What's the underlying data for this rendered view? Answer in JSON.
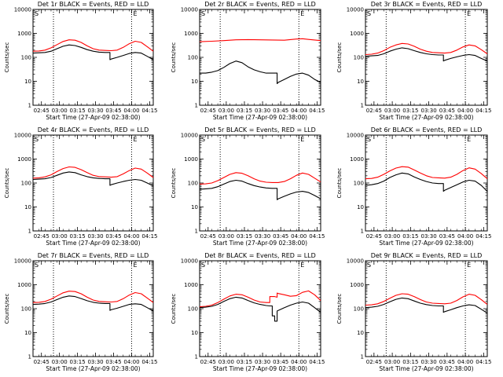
{
  "figure": {
    "xlabel": "Start Time (27-Apr-09 02:38:00)",
    "ylabel": "Counts/sec",
    "x_tick_labels": [
      "02:45",
      "03:00",
      "03:15",
      "03:30",
      "03:45",
      "04:00",
      "04:15"
    ],
    "y_tick_labels": [
      "1",
      "10",
      "100",
      "1000",
      "10000"
    ],
    "markers": {
      "start": "S",
      "end": "E"
    },
    "colors": {
      "events": "#000000",
      "lld": "#ff0000",
      "frame": "#000000"
    }
  },
  "chart_data": [
    {
      "type": "line",
      "title": "Det 1r BLACK = Events, RED = LLD",
      "xlim": [
        0,
        100
      ],
      "ylim": [
        1,
        10000
      ],
      "y_scale": "log",
      "x_tick_values": [
        7,
        22,
        37,
        52,
        67,
        82,
        97
      ],
      "dotted_vlines_minutes": [
        17,
        82
      ],
      "markers": {
        "start_x": 0,
        "end_x": 82
      },
      "series": [
        {
          "name": "BLACK = Events",
          "x": [
            0,
            5,
            10,
            15,
            20,
            25,
            30,
            35,
            40,
            45,
            50,
            55,
            60,
            64,
            64,
            65,
            70,
            75,
            80,
            85,
            90,
            95,
            100
          ],
          "y": [
            150,
            155,
            160,
            180,
            230,
            290,
            330,
            310,
            260,
            210,
            180,
            165,
            160,
            160,
            80,
            85,
            100,
            120,
            145,
            160,
            150,
            110,
            80
          ]
        },
        {
          "name": "RED = LLD",
          "x": [
            0,
            5,
            10,
            15,
            20,
            25,
            30,
            35,
            40,
            45,
            50,
            55,
            60,
            65,
            70,
            75,
            80,
            85,
            90,
            95,
            100
          ],
          "y": [
            180,
            185,
            200,
            250,
            340,
            460,
            540,
            520,
            420,
            300,
            230,
            200,
            195,
            190,
            200,
            260,
            370,
            470,
            420,
            280,
            180
          ]
        }
      ]
    },
    {
      "type": "line",
      "title": "Det 2r BLACK = Events, RED = LLD",
      "xlim": [
        0,
        100
      ],
      "ylim": [
        1,
        10000
      ],
      "y_scale": "log",
      "x_tick_values": [
        7,
        22,
        37,
        52,
        67,
        82,
        97
      ],
      "dotted_vlines_minutes": [
        17,
        82
      ],
      "markers": {
        "start_x": 0,
        "end_x": 82
      },
      "series": [
        {
          "name": "BLACK = Events",
          "x": [
            0,
            5,
            10,
            15,
            20,
            25,
            30,
            35,
            40,
            45,
            50,
            55,
            60,
            64,
            64,
            65,
            70,
            75,
            80,
            85,
            90,
            95,
            100
          ],
          "y": [
            22,
            22,
            24,
            28,
            38,
            55,
            70,
            60,
            40,
            30,
            25,
            22,
            22,
            22,
            8,
            9,
            12,
            16,
            20,
            22,
            18,
            12,
            9
          ]
        },
        {
          "name": "RED = LLD",
          "x": [
            0,
            10,
            20,
            30,
            40,
            50,
            60,
            70,
            80,
            85,
            90,
            100
          ],
          "y": [
            450,
            470,
            500,
            540,
            550,
            540,
            530,
            520,
            580,
            600,
            560,
            500
          ]
        }
      ]
    },
    {
      "type": "line",
      "title": "Det 3r BLACK = Events, RED = LLD",
      "xlim": [
        0,
        100
      ],
      "ylim": [
        1,
        10000
      ],
      "y_scale": "log",
      "x_tick_values": [
        7,
        22,
        37,
        52,
        67,
        82,
        97
      ],
      "dotted_vlines_minutes": [
        17,
        82
      ],
      "markers": {
        "start_x": 0,
        "end_x": 82
      },
      "series": [
        {
          "name": "BLACK = Events",
          "x": [
            0,
            5,
            10,
            15,
            20,
            25,
            30,
            35,
            40,
            45,
            50,
            55,
            60,
            64,
            64,
            65,
            70,
            75,
            80,
            85,
            90,
            95,
            100
          ],
          "y": [
            110,
            115,
            120,
            140,
            180,
            220,
            250,
            230,
            190,
            160,
            140,
            130,
            125,
            125,
            70,
            75,
            90,
            105,
            120,
            130,
            120,
            90,
            70
          ]
        },
        {
          "name": "RED = LLD",
          "x": [
            0,
            5,
            10,
            15,
            20,
            25,
            30,
            35,
            40,
            45,
            50,
            55,
            60,
            65,
            70,
            75,
            80,
            85,
            90,
            95,
            100
          ],
          "y": [
            130,
            135,
            150,
            190,
            260,
            330,
            380,
            360,
            290,
            220,
            180,
            160,
            155,
            150,
            160,
            200,
            270,
            330,
            300,
            210,
            140
          ]
        }
      ]
    },
    {
      "type": "line",
      "title": "Det 4r BLACK = Events, RED = LLD",
      "xlim": [
        0,
        100
      ],
      "ylim": [
        1,
        10000
      ],
      "y_scale": "log",
      "x_tick_values": [
        7,
        22,
        37,
        52,
        67,
        82,
        97
      ],
      "dotted_vlines_minutes": [
        17,
        82
      ],
      "markers": {
        "start_x": 0,
        "end_x": 82
      },
      "series": [
        {
          "name": "BLACK = Events",
          "x": [
            0,
            5,
            10,
            15,
            20,
            25,
            30,
            35,
            40,
            45,
            50,
            55,
            60,
            64,
            64,
            65,
            70,
            75,
            80,
            85,
            90,
            95,
            100
          ],
          "y": [
            140,
            145,
            150,
            170,
            210,
            260,
            290,
            270,
            220,
            185,
            165,
            155,
            150,
            150,
            80,
            85,
            100,
            115,
            130,
            140,
            130,
            100,
            75
          ]
        },
        {
          "name": "RED = LLD",
          "x": [
            0,
            5,
            10,
            15,
            20,
            25,
            30,
            35,
            40,
            45,
            50,
            55,
            60,
            65,
            70,
            75,
            80,
            85,
            90,
            95,
            100
          ],
          "y": [
            160,
            165,
            180,
            220,
            300,
            400,
            470,
            450,
            360,
            270,
            210,
            185,
            180,
            175,
            185,
            240,
            330,
            420,
            380,
            260,
            170
          ]
        }
      ]
    },
    {
      "type": "line",
      "title": "Det 5r BLACK = Events, RED = LLD",
      "xlim": [
        0,
        100
      ],
      "ylim": [
        1,
        10000
      ],
      "y_scale": "log",
      "x_tick_values": [
        7,
        22,
        37,
        52,
        67,
        82,
        97
      ],
      "dotted_vlines_minutes": [
        17,
        82
      ],
      "markers": {
        "start_x": 0,
        "end_x": 82
      },
      "series": [
        {
          "name": "BLACK = Events",
          "x": [
            0,
            5,
            10,
            15,
            20,
            25,
            30,
            35,
            40,
            45,
            50,
            55,
            60,
            64,
            64,
            65,
            70,
            75,
            80,
            85,
            90,
            95,
            100
          ],
          "y": [
            55,
            57,
            60,
            70,
            90,
            115,
            130,
            120,
            95,
            78,
            68,
            62,
            60,
            60,
            20,
            22,
            28,
            35,
            42,
            45,
            40,
            30,
            22
          ]
        },
        {
          "name": "RED = LLD",
          "x": [
            0,
            5,
            10,
            15,
            20,
            25,
            30,
            35,
            40,
            45,
            50,
            55,
            60,
            65,
            70,
            75,
            80,
            85,
            90,
            95,
            100
          ],
          "y": [
            90,
            92,
            100,
            125,
            170,
            230,
            270,
            255,
            200,
            150,
            120,
            108,
            105,
            105,
            115,
            150,
            210,
            260,
            230,
            160,
            110
          ]
        }
      ]
    },
    {
      "type": "line",
      "title": "Det 6r BLACK = Events, RED = LLD",
      "xlim": [
        0,
        100
      ],
      "ylim": [
        1,
        10000
      ],
      "y_scale": "log",
      "x_tick_values": [
        7,
        22,
        37,
        52,
        67,
        82,
        97
      ],
      "dotted_vlines_minutes": [
        17,
        82
      ],
      "markers": {
        "start_x": 0,
        "end_x": 82
      },
      "series": [
        {
          "name": "BLACK = Events",
          "x": [
            0,
            5,
            10,
            15,
            20,
            25,
            30,
            35,
            40,
            45,
            50,
            55,
            60,
            64,
            64,
            65,
            70,
            75,
            80,
            85,
            90,
            95,
            100
          ],
          "y": [
            80,
            85,
            95,
            120,
            170,
            220,
            260,
            240,
            180,
            140,
            115,
            100,
            95,
            95,
            45,
            50,
            65,
            85,
            110,
            130,
            120,
            80,
            45
          ]
        },
        {
          "name": "RED = LLD",
          "x": [
            0,
            5,
            10,
            15,
            20,
            25,
            30,
            35,
            40,
            45,
            50,
            55,
            60,
            65,
            70,
            75,
            80,
            85,
            90,
            95,
            100
          ],
          "y": [
            150,
            155,
            175,
            230,
            320,
            420,
            480,
            460,
            350,
            260,
            200,
            170,
            165,
            160,
            175,
            230,
            330,
            430,
            380,
            250,
            150
          ]
        }
      ]
    },
    {
      "type": "line",
      "title": "Det 7r BLACK = Events, RED = LLD",
      "xlim": [
        0,
        100
      ],
      "ylim": [
        1,
        10000
      ],
      "y_scale": "log",
      "x_tick_values": [
        7,
        22,
        37,
        52,
        67,
        82,
        97
      ],
      "dotted_vlines_minutes": [
        17,
        82
      ],
      "markers": {
        "start_x": 0,
        "end_x": 82
      },
      "series": [
        {
          "name": "BLACK = Events",
          "x": [
            0,
            5,
            10,
            15,
            20,
            25,
            30,
            35,
            40,
            45,
            50,
            55,
            60,
            64,
            64,
            65,
            70,
            75,
            80,
            85,
            90,
            95,
            100
          ],
          "y": [
            150,
            155,
            165,
            190,
            240,
            300,
            340,
            320,
            265,
            215,
            185,
            170,
            165,
            165,
            85,
            90,
            105,
            125,
            150,
            160,
            150,
            110,
            80
          ]
        },
        {
          "name": "RED = LLD",
          "x": [
            0,
            5,
            10,
            15,
            20,
            25,
            30,
            35,
            40,
            45,
            50,
            55,
            60,
            65,
            70,
            75,
            80,
            85,
            90,
            95,
            100
          ],
          "y": [
            180,
            185,
            200,
            250,
            340,
            460,
            540,
            520,
            420,
            300,
            230,
            200,
            195,
            190,
            200,
            260,
            370,
            470,
            420,
            280,
            180
          ]
        }
      ]
    },
    {
      "type": "line",
      "title": "Det 8r BLACK = Events, RED = LLD",
      "xlim": [
        0,
        100
      ],
      "ylim": [
        1,
        10000
      ],
      "y_scale": "log",
      "x_tick_values": [
        7,
        22,
        37,
        52,
        67,
        82,
        97
      ],
      "dotted_vlines_minutes": [
        17,
        82
      ],
      "markers": {
        "start_x": 0,
        "end_x": 82
      },
      "series": [
        {
          "name": "BLACK = Events",
          "x": [
            0,
            5,
            10,
            15,
            20,
            25,
            30,
            35,
            40,
            45,
            50,
            55,
            58,
            60,
            60,
            62,
            62,
            64,
            64,
            65,
            70,
            75,
            80,
            85,
            90,
            95,
            100
          ],
          "y": [
            110,
            115,
            125,
            150,
            200,
            260,
            300,
            280,
            220,
            175,
            150,
            135,
            130,
            130,
            50,
            50,
            30,
            30,
            80,
            85,
            110,
            140,
            170,
            190,
            170,
            110,
            70
          ]
        },
        {
          "name": "RED = LLD",
          "x": [
            0,
            5,
            10,
            15,
            20,
            25,
            30,
            35,
            40,
            45,
            50,
            55,
            58,
            58,
            62,
            64,
            64,
            65,
            70,
            75,
            80,
            85,
            90,
            95,
            100
          ],
          "y": [
            120,
            125,
            140,
            180,
            250,
            340,
            400,
            380,
            300,
            230,
            190,
            180,
            180,
            320,
            320,
            300,
            450,
            430,
            380,
            330,
            350,
            480,
            550,
            380,
            220
          ]
        }
      ]
    },
    {
      "type": "line",
      "title": "Det 9r BLACK = Events, RED = LLD",
      "xlim": [
        0,
        100
      ],
      "ylim": [
        1,
        10000
      ],
      "y_scale": "log",
      "x_tick_values": [
        7,
        22,
        37,
        52,
        67,
        82,
        97
      ],
      "dotted_vlines_minutes": [
        17,
        82
      ],
      "markers": {
        "start_x": 0,
        "end_x": 82
      },
      "series": [
        {
          "name": "BLACK = Events",
          "x": [
            0,
            5,
            10,
            15,
            20,
            25,
            30,
            35,
            40,
            45,
            50,
            55,
            60,
            64,
            64,
            65,
            70,
            75,
            80,
            85,
            90,
            95,
            100
          ],
          "y": [
            110,
            115,
            125,
            150,
            195,
            245,
            280,
            260,
            210,
            170,
            148,
            135,
            130,
            130,
            70,
            75,
            90,
            110,
            130,
            145,
            135,
            95,
            65
          ]
        },
        {
          "name": "RED = LLD",
          "x": [
            0,
            5,
            10,
            15,
            20,
            25,
            30,
            35,
            40,
            45,
            50,
            55,
            60,
            65,
            70,
            75,
            80,
            85,
            90,
            95,
            100
          ],
          "y": [
            140,
            145,
            160,
            200,
            270,
            360,
            420,
            400,
            320,
            240,
            190,
            170,
            165,
            160,
            170,
            220,
            310,
            400,
            360,
            240,
            150
          ]
        }
      ]
    }
  ]
}
